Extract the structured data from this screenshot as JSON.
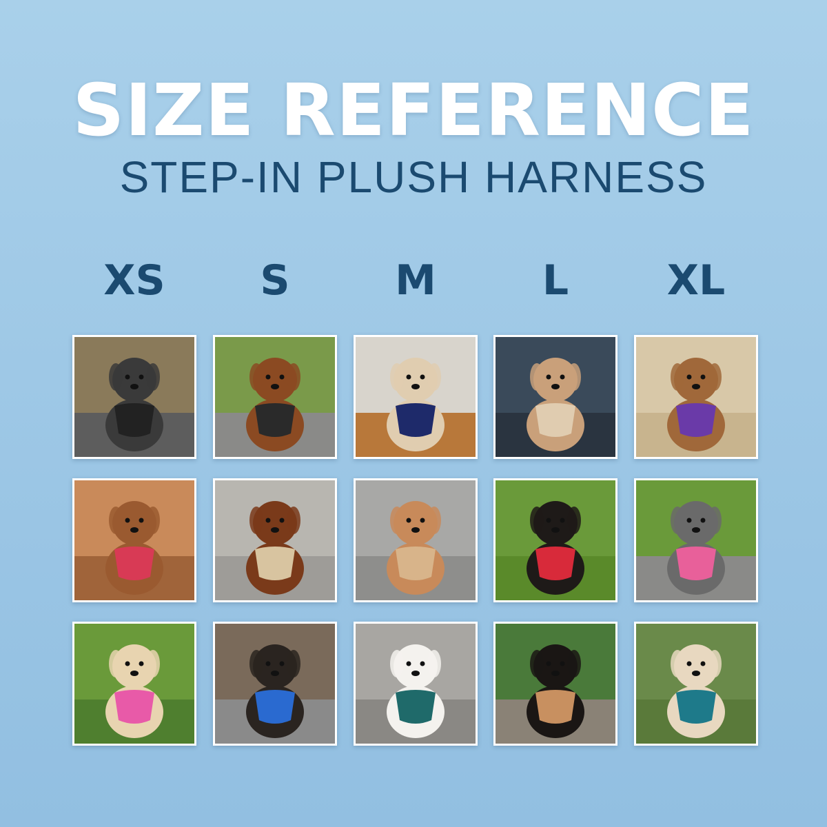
{
  "header": {
    "title": "SIZE REFERENCE",
    "subtitle": "STEP-IN PLUSH HARNESS"
  },
  "sizes": [
    "XS",
    "S",
    "M",
    "L",
    "XL"
  ],
  "photos": [
    [
      {
        "bg": "#8a7a5a",
        "ground": "#5d5d5d",
        "dog": "#3a3a3a",
        "harness": "#222222"
      },
      {
        "bg": "#c98a5a",
        "ground": "#a0643a",
        "dog": "#9a5a30",
        "harness": "#d83a55"
      },
      {
        "bg": "#6a9a3a",
        "ground": "#4f7f2f",
        "dog": "#e8d4b0",
        "harness": "#e85aa8"
      }
    ],
    [
      {
        "bg": "#7a9a4a",
        "ground": "#8a8a88",
        "dog": "#8b4a22",
        "harness": "#2a2a2a"
      },
      {
        "bg": "#b8b6b0",
        "ground": "#9e9c98",
        "dog": "#7a3a1a",
        "harness": "#d8c4a0"
      },
      {
        "bg": "#7a6a5a",
        "ground": "#8a8a8a",
        "dog": "#2a2420",
        "harness": "#2a6ad0"
      }
    ],
    [
      {
        "bg": "#d8d4cc",
        "ground": "#b8783a",
        "dog": "#e0cdb0",
        "harness": "#1e2a6a"
      },
      {
        "bg": "#a8a8a6",
        "ground": "#8e8e8c",
        "dog": "#c88a5a",
        "harness": "#d8b48a"
      },
      {
        "bg": "#a8a6a2",
        "ground": "#8a8884",
        "dog": "#f4f2ee",
        "harness": "#1f6a6a"
      }
    ],
    [
      {
        "bg": "#3a4a5a",
        "ground": "#2a3440",
        "dog": "#c9a07a",
        "harness": "#e0ccb0"
      },
      {
        "bg": "#6a9a3a",
        "ground": "#5a8a2a",
        "dog": "#1e1a18",
        "harness": "#d82a3a"
      },
      {
        "bg": "#4a7a3a",
        "ground": "#8a8276",
        "dog": "#1a1614",
        "harness": "#c89060"
      }
    ],
    [
      {
        "bg": "#d8c8a8",
        "ground": "#c8b48e",
        "dog": "#a0683a",
        "harness": "#6a3aa8"
      },
      {
        "bg": "#6a9a3a",
        "ground": "#8a8a88",
        "dog": "#6a6a6a",
        "harness": "#e8609a"
      },
      {
        "bg": "#6a8a4a",
        "ground": "#5a7a3a",
        "dog": "#e8d8c0",
        "harness": "#1e7a8a"
      }
    ]
  ]
}
